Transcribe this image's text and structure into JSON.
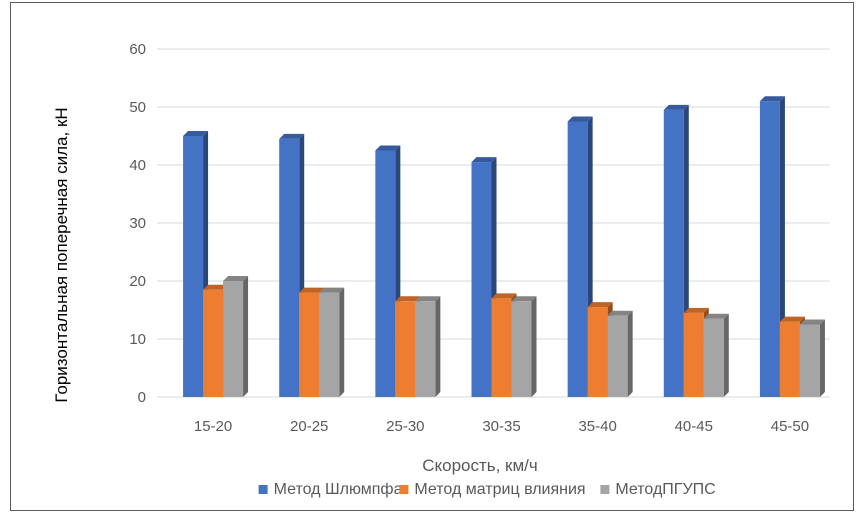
{
  "chart_data": {
    "type": "bar",
    "categories": [
      "15-20",
      "20-25",
      "25-30",
      "30-35",
      "35-40",
      "40-45",
      "45-50"
    ],
    "series": [
      {
        "name": "Метод Шлюмпфа",
        "values": [
          45,
          44.5,
          42.5,
          40.5,
          47.5,
          49.5,
          51
        ],
        "color": "#4472c4"
      },
      {
        "name": "Метод матриц влияния",
        "values": [
          18.5,
          18,
          16.5,
          17,
          15.5,
          14.5,
          13
        ],
        "color": "#ed7d31"
      },
      {
        "name": "МетодПГУПС",
        "values": [
          20,
          18,
          16.5,
          16.5,
          14,
          13.5,
          12.5
        ],
        "color": "#a5a5a5"
      }
    ],
    "xlabel": "Скорость, км/ч",
    "ylabel": "Горизонтальная поперечная сила, кН",
    "ylim": [
      0,
      60
    ],
    "yticks": [
      "0",
      "10",
      "20",
      "30",
      "40",
      "50",
      "60"
    ],
    "grid": true,
    "legend_position": "bottom",
    "style": "3d-clustered-column"
  }
}
